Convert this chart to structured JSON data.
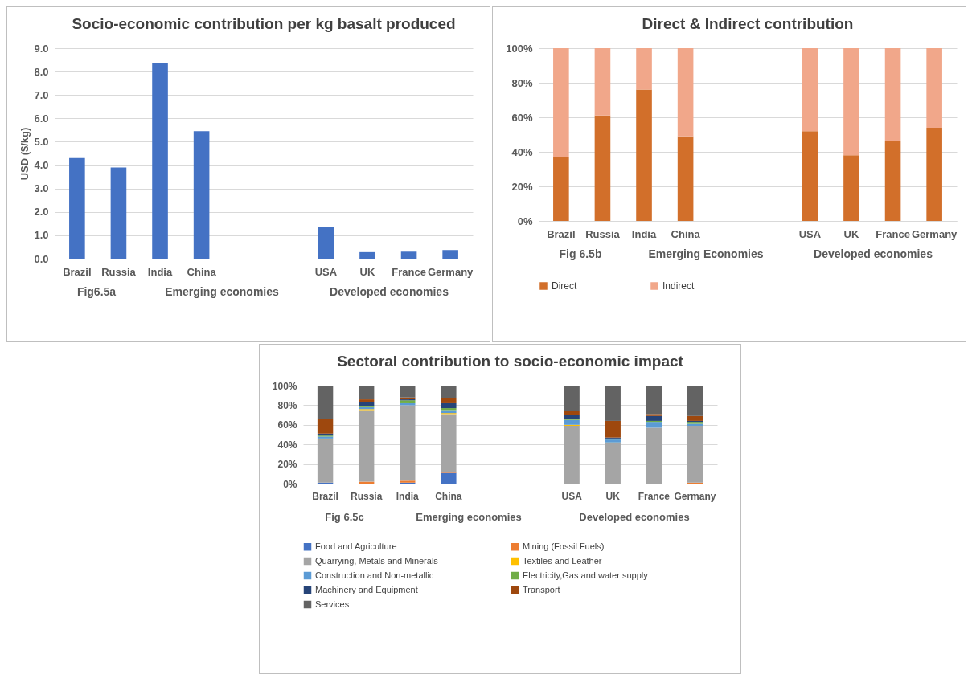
{
  "chart_data": [
    {
      "type": "bar",
      "title": "Socio-economic contribution per kg basalt produced",
      "ylabel": "USD ($/kg)",
      "categories": [
        "Brazil",
        "Russia",
        "India",
        "China",
        null,
        null,
        "USA",
        "UK",
        "France",
        "Germany"
      ],
      "values": [
        4.3,
        3.9,
        8.35,
        5.45,
        null,
        null,
        1.35,
        0.28,
        0.3,
        0.37
      ],
      "color": "#4472c4",
      "ylim": [
        0,
        9
      ],
      "yticks": [
        {
          "value": 0,
          "label": "0.0"
        },
        {
          "value": 1,
          "label": "1.0"
        },
        {
          "value": 2,
          "label": "2.0"
        },
        {
          "value": 3,
          "label": "3.0"
        },
        {
          "value": 4,
          "label": "4.0"
        },
        {
          "value": 5,
          "label": "5.0"
        },
        {
          "value": 6,
          "label": "6.0"
        },
        {
          "value": 7,
          "label": "7.0"
        },
        {
          "value": 8,
          "label": "8.0"
        },
        {
          "value": 9,
          "label": "9.0"
        }
      ],
      "grid": "y",
      "annotations": [
        "Fig6.5a",
        "Emerging economies",
        "Developed economies"
      ]
    },
    {
      "type": "bar",
      "title": "Direct & Indirect contribution",
      "categories": [
        "Brazil",
        "Russia",
        "India",
        "China",
        null,
        null,
        "USA",
        "UK",
        "France",
        "Germany"
      ],
      "stacked": true,
      "series": [
        {
          "name": "Direct",
          "color": "#d26f2a",
          "values": [
            37,
            61,
            76,
            49,
            null,
            null,
            52,
            38,
            46,
            54
          ]
        },
        {
          "name": "Indirect",
          "color": "#f1a78a",
          "values": [
            63,
            39,
            24,
            51,
            null,
            null,
            48,
            62,
            54,
            46
          ]
        }
      ],
      "ylim": [
        0,
        100
      ],
      "yticks": [
        {
          "value": 0,
          "label": "0%"
        },
        {
          "value": 20,
          "label": "20%"
        },
        {
          "value": 40,
          "label": "40%"
        },
        {
          "value": 60,
          "label": "60%"
        },
        {
          "value": 80,
          "label": "80%"
        },
        {
          "value": 100,
          "label": "100%"
        }
      ],
      "grid": "y",
      "legend": "bottom",
      "annotations": [
        "Fig 6.5b",
        "Emerging Economies",
        "Developed economies"
      ]
    },
    {
      "type": "bar",
      "title": "Sectoral contribution to socio-economic impact",
      "categories": [
        "Brazil",
        "Russia",
        "India",
        "China",
        null,
        null,
        "USA",
        "UK",
        "France",
        "Germany"
      ],
      "stacked": true,
      "series": [
        {
          "name": "Food and Agriculture",
          "color": "#4472c4",
          "values": [
            1,
            0,
            1,
            11,
            null,
            null,
            0,
            0,
            0,
            0
          ]
        },
        {
          "name": "Mining (Fossil Fuels)",
          "color": "#ed7d31",
          "values": [
            0,
            2,
            2,
            1,
            null,
            null,
            0,
            0,
            0,
            1
          ]
        },
        {
          "name": "Quarrying, Metals and Minerals",
          "color": "#a5a5a5",
          "values": [
            44,
            73,
            77,
            59,
            null,
            null,
            59,
            41,
            57,
            58
          ]
        },
        {
          "name": "Textiles and Leather",
          "color": "#ffc000",
          "values": [
            1,
            1,
            0,
            1,
            null,
            null,
            1,
            1,
            0,
            0
          ]
        },
        {
          "name": "Construction and Non-metallic",
          "color": "#5b9bd5",
          "values": [
            2,
            2,
            2,
            3,
            null,
            null,
            5,
            3,
            6,
            2
          ]
        },
        {
          "name": "Electricity,Gas and water supply",
          "color": "#70ad47",
          "values": [
            1,
            1,
            3,
            2,
            null,
            null,
            1,
            1,
            1,
            2
          ]
        },
        {
          "name": "Machinery and Equipment",
          "color": "#264478",
          "values": [
            2,
            4,
            1,
            5,
            null,
            null,
            4,
            1,
            5,
            1
          ]
        },
        {
          "name": "Transport",
          "color": "#9e480e",
          "values": [
            15,
            3,
            2,
            5,
            null,
            null,
            4,
            17,
            2,
            5
          ]
        },
        {
          "name": "Services",
          "color": "#636363",
          "values": [
            34,
            14,
            12,
            13,
            null,
            null,
            26,
            36,
            29,
            31
          ]
        }
      ],
      "ylim": [
        0,
        100
      ],
      "yticks": [
        {
          "value": 0,
          "label": "0%"
        },
        {
          "value": 20,
          "label": "20%"
        },
        {
          "value": 40,
          "label": "40%"
        },
        {
          "value": 60,
          "label": "60%"
        },
        {
          "value": 80,
          "label": "80%"
        },
        {
          "value": 100,
          "label": "100%"
        }
      ],
      "grid": "y",
      "legend": "bottom",
      "annotations": [
        "Fig 6.5c",
        "Emerging economies",
        "Developed economies"
      ]
    }
  ]
}
